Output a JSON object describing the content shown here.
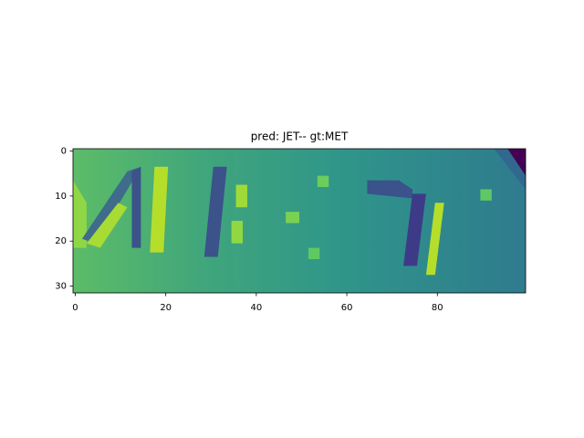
{
  "chart_data": {
    "type": "image",
    "title": "pred: JET-- gt:MET",
    "xlim": [
      -0.5,
      99.5
    ],
    "ylim": [
      31.5,
      -0.5
    ],
    "xticks": [
      0,
      20,
      40,
      60,
      80
    ],
    "yticks": [
      0,
      10,
      20,
      30
    ]
  }
}
